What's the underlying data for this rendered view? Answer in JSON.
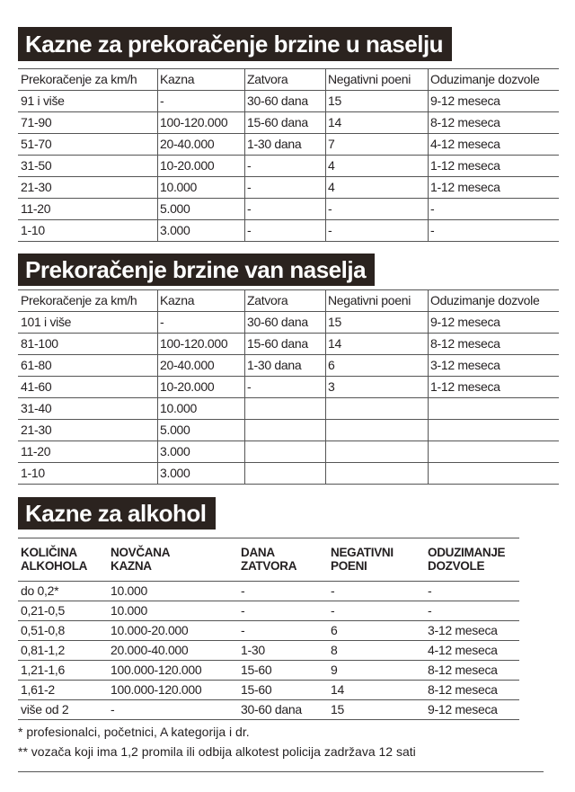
{
  "sections": [
    {
      "title": "Kazne za prekoračenje brzine u naselju",
      "header": [
        "Prekoračenje za km/h",
        "Kazna",
        "Zatvora",
        "Negativni poeni",
        "Oduzimanje dozvole"
      ],
      "rows": [
        [
          "91 i više",
          "-",
          "30-60 dana",
          "15",
          "9-12 meseca"
        ],
        [
          "71-90",
          "100-120.000",
          "15-60 dana",
          "14",
          "8-12 meseca"
        ],
        [
          "51-70",
          "20-40.000",
          "1-30 dana",
          "7",
          "4-12 meseca"
        ],
        [
          "31-50",
          "10-20.000",
          "-",
          "4",
          "1-12 meseca"
        ],
        [
          "21-30",
          "10.000",
          "-",
          "4",
          "1-12 meseca"
        ],
        [
          "11-20",
          "5.000",
          "-",
          "-",
          "-"
        ],
        [
          "1-10",
          "3.000",
          "-",
          "-",
          "-"
        ]
      ]
    },
    {
      "title": "Prekoračenje brzine van naselja",
      "header": [
        "Prekoračenje za km/h",
        "Kazna",
        "Zatvora",
        "Negativni poeni",
        "Oduzimanje dozvole"
      ],
      "rows": [
        [
          "101 i više",
          "-",
          "30-60 dana",
          "15",
          "9-12 meseca"
        ],
        [
          "81-100",
          "100-120.000",
          "15-60 dana",
          "14",
          "8-12 meseca"
        ],
        [
          "61-80",
          "20-40.000",
          "1-30 dana",
          "6",
          "3-12 meseca"
        ],
        [
          "41-60",
          "10-20.000",
          "-",
          "3",
          "1-12 meseca"
        ],
        [
          "31-40",
          "10.000"
        ],
        [
          "21-30",
          "5.000"
        ],
        [
          "11-20",
          "3.000"
        ],
        [
          "1-10",
          "3.000"
        ]
      ]
    },
    {
      "title": "Kazne za alkohol",
      "header": [
        [
          "KOLIČINA",
          "ALKOHOLA"
        ],
        [
          "NOVČANA",
          "KAZNA"
        ],
        [
          "DANA",
          "ZATVORA"
        ],
        [
          "NEGATIVNI",
          "POENI"
        ],
        [
          "ODUZIMANJE",
          "DOZVOLE"
        ]
      ],
      "rows": [
        [
          "do 0,2*",
          "10.000",
          "-",
          "-",
          "-"
        ],
        [
          "0,21-0,5",
          "10.000",
          "-",
          "-",
          "-"
        ],
        [
          "0,51-0,8",
          "10.000-20.000",
          "-",
          "6",
          "3-12 meseca"
        ],
        [
          "0,81-1,2",
          "20.000-40.000",
          "1-30",
          "8",
          "4-12 meseca"
        ],
        [
          "1,21-1,6",
          "100.000-120.000",
          "15-60",
          "9",
          "8-12 meseca"
        ],
        [
          "1,61-2",
          "100.000-120.000",
          "15-60",
          "14",
          "8-12 meseca"
        ],
        [
          "više od 2",
          "-",
          "30-60 dana",
          "15",
          "9-12 meseca"
        ]
      ]
    }
  ],
  "footnotes": [
    "* profesionalci, početnici, A kategorija i dr.",
    "** vozača koji ima 1,2 promila ili odbija alkotest policija zadržava 12 sati"
  ]
}
